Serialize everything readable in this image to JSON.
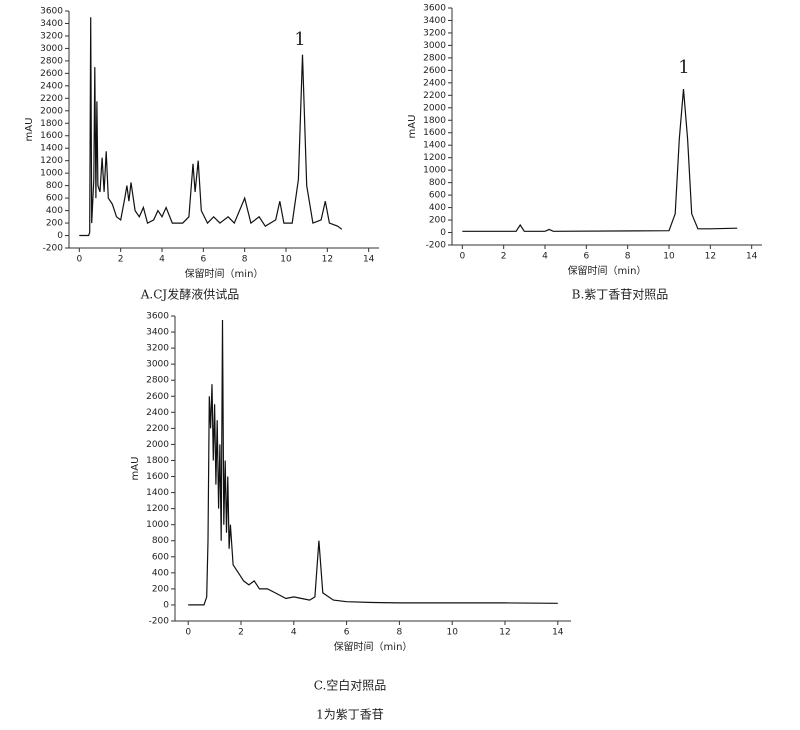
{
  "chart_data": [
    {
      "type": "line",
      "caption": "A.CJ发酵液供试品",
      "xlabel": "保留时间（min）",
      "ylabel": "mAU",
      "annotation": "1",
      "xlim": [
        -0.5,
        14.5
      ],
      "ylim": [
        -200,
        3600
      ],
      "xticks": [
        0,
        2,
        4,
        6,
        8,
        10,
        12,
        14
      ],
      "yticks": [
        -200,
        0,
        200,
        400,
        600,
        800,
        1000,
        1200,
        1400,
        1600,
        1800,
        2000,
        2200,
        2400,
        2600,
        2800,
        3000,
        3200,
        3400,
        3600
      ],
      "series": [
        {
          "color": "#111111",
          "x": [
            0,
            0.45,
            0.5,
            0.55,
            0.6,
            0.7,
            0.75,
            0.8,
            0.85,
            0.9,
            1.0,
            1.1,
            1.2,
            1.3,
            1.4,
            1.6,
            1.8,
            2.0,
            2.2,
            2.3,
            2.4,
            2.5,
            2.7,
            2.9,
            3.1,
            3.3,
            3.6,
            3.8,
            4.0,
            4.2,
            4.5,
            5.0,
            5.3,
            5.5,
            5.6,
            5.75,
            5.9,
            6.2,
            6.5,
            6.8,
            7.2,
            7.5,
            8.0,
            8.3,
            8.7,
            9.0,
            9.5,
            9.7,
            9.9,
            10.3,
            10.6,
            10.8,
            11.0,
            11.3,
            11.7,
            11.9,
            12.1,
            12.5,
            12.7
          ],
          "values": [
            0,
            0,
            50,
            3500,
            200,
            900,
            2700,
            600,
            2150,
            800,
            700,
            1250,
            700,
            1350,
            600,
            500,
            300,
            250,
            600,
            800,
            550,
            850,
            400,
            300,
            450,
            200,
            250,
            400,
            300,
            450,
            200,
            200,
            300,
            1150,
            700,
            1200,
            400,
            200,
            300,
            200,
            300,
            200,
            600,
            200,
            300,
            150,
            250,
            550,
            200,
            200,
            900,
            2900,
            800,
            200,
            250,
            550,
            200,
            150,
            100
          ]
        }
      ]
    },
    {
      "type": "line",
      "caption": "B.紫丁香苷对照品",
      "xlabel": "保留时间（min）",
      "ylabel": "mAU",
      "annotation": "1",
      "xlim": [
        -0.5,
        14.5
      ],
      "ylim": [
        -200,
        3600
      ],
      "xticks": [
        0,
        2,
        4,
        6,
        8,
        10,
        12,
        14
      ],
      "yticks": [
        -200,
        0,
        200,
        400,
        600,
        800,
        1000,
        1200,
        1400,
        1600,
        1800,
        2000,
        2200,
        2400,
        2600,
        2800,
        3000,
        3200,
        3400,
        3600
      ],
      "series": [
        {
          "color": "#111111",
          "x": [
            0,
            2.6,
            2.8,
            3.0,
            4.0,
            4.2,
            4.4,
            10.0,
            10.3,
            10.5,
            10.7,
            10.9,
            11.1,
            11.4,
            12,
            13.3
          ],
          "values": [
            20,
            20,
            120,
            20,
            20,
            50,
            20,
            30,
            300,
            1500,
            2300,
            1500,
            300,
            60,
            60,
            70
          ]
        }
      ]
    },
    {
      "type": "line",
      "caption": "C.空白对照品",
      "note": "1为紫丁香苷",
      "xlabel": "保留时间（min）",
      "ylabel": "mAU",
      "xlim": [
        -0.5,
        14.5
      ],
      "ylim": [
        -200,
        3600
      ],
      "xticks": [
        0,
        2,
        4,
        6,
        8,
        10,
        12,
        14
      ],
      "yticks": [
        -200,
        0,
        200,
        400,
        600,
        800,
        1000,
        1200,
        1400,
        1600,
        1800,
        2000,
        2200,
        2400,
        2600,
        2800,
        3000,
        3200,
        3400,
        3600
      ],
      "series": [
        {
          "color": "#111111",
          "x": [
            0,
            0.6,
            0.7,
            0.75,
            0.8,
            0.85,
            0.9,
            0.95,
            1.0,
            1.05,
            1.1,
            1.15,
            1.2,
            1.25,
            1.3,
            1.35,
            1.4,
            1.45,
            1.5,
            1.55,
            1.6,
            1.7,
            1.9,
            2.1,
            2.3,
            2.5,
            2.7,
            3.0,
            3.3,
            3.7,
            4.0,
            4.3,
            4.6,
            4.8,
            4.95,
            5.1,
            5.5,
            6.0,
            7,
            8,
            10,
            12,
            14
          ],
          "values": [
            0,
            0,
            100,
            800,
            2600,
            2200,
            2750,
            1800,
            2500,
            1500,
            2300,
            1200,
            2000,
            800,
            3550,
            1000,
            1800,
            900,
            1600,
            700,
            1000,
            500,
            400,
            300,
            250,
            300,
            200,
            200,
            150,
            80,
            100,
            80,
            60,
            100,
            800,
            150,
            60,
            40,
            30,
            25,
            25,
            25,
            20
          ]
        }
      ]
    }
  ]
}
